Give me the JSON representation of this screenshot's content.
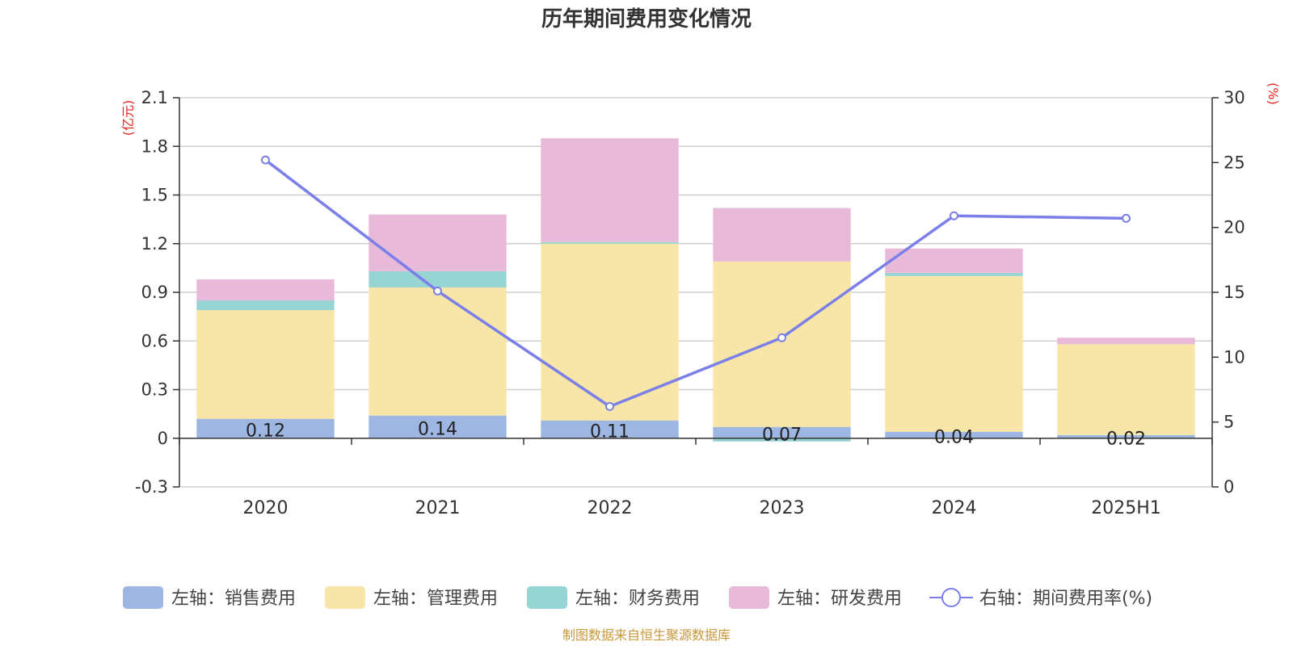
{
  "chart_data": {
    "type": "bar",
    "title": "历年期间费用变化情况",
    "categories": [
      "2020",
      "2021",
      "2022",
      "2023",
      "2024",
      "2025H1"
    ],
    "left_axis": {
      "unit": "(亿元)",
      "min": -0.3,
      "max": 2.1,
      "ticks": [
        "-0.3",
        "0",
        "0.3",
        "0.6",
        "0.9",
        "1.2",
        "1.5",
        "1.8",
        "2.1"
      ]
    },
    "right_axis": {
      "unit": "(%)",
      "min": 0,
      "max": 30,
      "ticks": [
        "0",
        "5",
        "10",
        "15",
        "20",
        "25",
        "30"
      ]
    },
    "series": [
      {
        "name": "左轴：销售费用",
        "kind": "bar",
        "axis": "left",
        "color": "#9db6e2",
        "values": [
          0.12,
          0.14,
          0.11,
          0.07,
          0.04,
          0.02
        ],
        "labels": [
          "0.12",
          "0.14",
          "0.11",
          "0.07",
          "0.04",
          "0.02"
        ]
      },
      {
        "name": "左轴：管理费用",
        "kind": "bar",
        "axis": "left",
        "color": "#f8e6a8",
        "values": [
          0.67,
          0.79,
          1.09,
          1.02,
          0.96,
          0.56
        ]
      },
      {
        "name": "左轴：财务费用",
        "kind": "bar",
        "axis": "left",
        "color": "#97d4d4",
        "values": [
          0.06,
          0.1,
          0.01,
          -0.02,
          0.02,
          0.0
        ]
      },
      {
        "name": "左轴：研发费用",
        "kind": "bar",
        "axis": "left",
        "color": "#e8b9d9",
        "values": [
          0.13,
          0.35,
          0.64,
          0.33,
          0.15,
          0.04
        ]
      },
      {
        "name": "右轴：期间费用率(%)",
        "kind": "line",
        "axis": "right",
        "color": "#7b7fe8",
        "values": [
          25.2,
          15.1,
          6.2,
          11.5,
          20.9,
          20.7
        ]
      }
    ],
    "grid": true,
    "legend": "bottom"
  },
  "source_note": "制图数据来自恒生聚源数据库"
}
